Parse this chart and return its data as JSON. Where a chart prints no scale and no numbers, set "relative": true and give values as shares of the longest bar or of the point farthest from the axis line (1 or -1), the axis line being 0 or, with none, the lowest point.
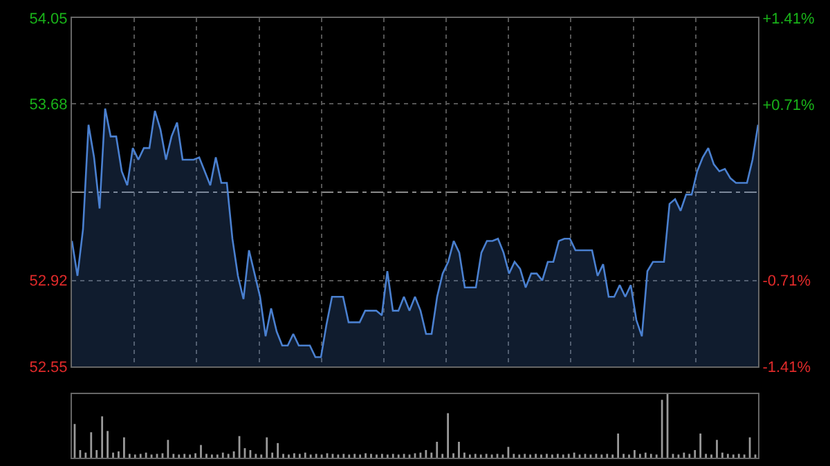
{
  "chart_data": [
    {
      "type": "area",
      "categories": [
        null,
        null,
        null,
        null,
        null,
        null,
        null,
        null,
        null,
        null,
        null,
        null,
        null,
        null,
        null,
        null,
        null,
        null,
        null,
        null,
        null,
        null,
        null,
        null,
        null,
        null,
        null,
        null,
        null,
        null,
        null,
        null,
        null,
        null,
        null,
        null,
        null,
        null,
        null,
        null,
        null,
        null,
        null,
        null,
        null,
        null,
        null,
        null,
        null,
        null,
        null,
        null,
        null,
        null,
        null,
        null,
        null,
        null,
        null,
        null,
        null,
        null,
        null,
        null,
        null,
        null,
        null,
        null,
        null,
        null,
        null,
        null,
        null,
        null,
        null,
        null,
        null,
        null,
        null,
        null,
        null,
        null,
        null,
        null,
        null,
        null,
        null,
        null,
        null,
        null,
        null,
        null,
        null,
        null,
        null,
        null,
        null,
        null,
        null,
        null,
        null,
        null,
        null,
        null,
        null,
        null,
        null,
        null,
        null,
        null,
        null,
        null,
        null,
        null,
        null,
        null,
        null,
        null,
        null,
        null,
        null,
        null,
        null,
        null,
        null
      ],
      "series": [
        {
          "color": "#4a80d0",
          "values": [
            53.09,
            52.94,
            53.14,
            53.59,
            53.45,
            53.23,
            53.66,
            53.54,
            53.54,
            53.39,
            53.33,
            53.49,
            53.44,
            53.49,
            53.49,
            53.65,
            53.57,
            53.44,
            53.54,
            53.6,
            53.44,
            53.44,
            53.44,
            53.45,
            53.39,
            53.33,
            53.45,
            53.34,
            53.34,
            53.1,
            52.94,
            52.84,
            53.05,
            52.95,
            52.85,
            52.68,
            52.8,
            52.7,
            52.64,
            52.64,
            52.69,
            52.64,
            52.64,
            52.64,
            52.59,
            52.59,
            52.73,
            52.85,
            52.85,
            52.85,
            52.74,
            52.74,
            52.74,
            52.79,
            52.79,
            52.79,
            52.77,
            52.96,
            52.79,
            52.79,
            52.85,
            52.79,
            52.85,
            52.79,
            52.69,
            52.69,
            52.85,
            52.95,
            53.0,
            53.09,
            53.04,
            52.89,
            52.89,
            52.89,
            53.04,
            53.09,
            53.09,
            53.1,
            53.04,
            52.95,
            53.0,
            52.97,
            52.89,
            52.95,
            52.95,
            52.92,
            53.0,
            53.0,
            53.09,
            53.1,
            53.1,
            53.05,
            53.05,
            53.05,
            53.05,
            52.94,
            52.99,
            52.85,
            52.85,
            52.9,
            52.85,
            52.9,
            52.75,
            52.68,
            52.96,
            53.0,
            53.0,
            53.0,
            53.25,
            53.27,
            53.22,
            53.29,
            53.29,
            53.39,
            53.45,
            53.49,
            53.42,
            53.39,
            53.4,
            53.36,
            53.34,
            53.34,
            53.34,
            53.44,
            53.59
          ]
        }
      ],
      "ylim": [
        52.55,
        54.05
      ],
      "yticks": [
        54.05,
        53.68,
        52.92,
        52.55
      ],
      "y2lim": [
        -1.41,
        1.41
      ],
      "y2ticks": [
        {
          "value": 1.41,
          "label": "+1.41%"
        },
        {
          "value": 0.71,
          "label": "+0.71%"
        },
        {
          "value": -0.71,
          "label": "-0.71%"
        },
        {
          "value": -1.41,
          "label": "-1.41%"
        }
      ],
      "ref_lines": [
        {
          "axis": "y",
          "value": 53.3
        }
      ],
      "grid": true,
      "tick_labels": "y"
    },
    {
      "type": "bar",
      "relative": true,
      "tick_labels": false,
      "categories": [
        null,
        null,
        null,
        null,
        null,
        null,
        null,
        null,
        null,
        null,
        null,
        null,
        null,
        null,
        null,
        null,
        null,
        null,
        null,
        null,
        null,
        null,
        null,
        null,
        null,
        null,
        null,
        null,
        null,
        null,
        null,
        null,
        null,
        null,
        null,
        null,
        null,
        null,
        null,
        null,
        null,
        null,
        null,
        null,
        null,
        null,
        null,
        null,
        null,
        null,
        null,
        null,
        null,
        null,
        null,
        null,
        null,
        null,
        null,
        null,
        null,
        null,
        null,
        null,
        null,
        null,
        null,
        null,
        null,
        null,
        null,
        null,
        null,
        null,
        null,
        null,
        null,
        null,
        null,
        null,
        null,
        null,
        null,
        null,
        null,
        null,
        null,
        null,
        null,
        null,
        null,
        null,
        null,
        null,
        null,
        null,
        null,
        null,
        null,
        null,
        null,
        null,
        null,
        null,
        null,
        null,
        null,
        null,
        null,
        null,
        null,
        null,
        null,
        null,
        null,
        null,
        null,
        null,
        null,
        null,
        null,
        null,
        null,
        null,
        null
      ],
      "series": [
        {
          "color": "#9a9a9a",
          "values": [
            0.53,
            0.12,
            0.08,
            0.4,
            0.12,
            0.65,
            0.42,
            0.08,
            0.1,
            0.32,
            0.06,
            0.05,
            0.06,
            0.08,
            0.05,
            0.06,
            0.07,
            0.28,
            0.06,
            0.05,
            0.06,
            0.05,
            0.07,
            0.2,
            0.06,
            0.05,
            0.05,
            0.08,
            0.06,
            0.1,
            0.34,
            0.15,
            0.12,
            0.06,
            0.05,
            0.32,
            0.08,
            0.23,
            0.06,
            0.05,
            0.07,
            0.06,
            0.08,
            0.05,
            0.06,
            0.05,
            0.07,
            0.06,
            0.05,
            0.06,
            0.05,
            0.06,
            0.05,
            0.07,
            0.06,
            0.05,
            0.06,
            0.05,
            0.06,
            0.05,
            0.06,
            0.05,
            0.07,
            0.08,
            0.12,
            0.08,
            0.25,
            0.06,
            0.7,
            0.07,
            0.25,
            0.08,
            0.05,
            0.06,
            0.05,
            0.06,
            0.05,
            0.06,
            0.05,
            0.17,
            0.06,
            0.05,
            0.06,
            0.05,
            0.06,
            0.05,
            0.06,
            0.05,
            0.06,
            0.05,
            0.06,
            0.08,
            0.05,
            0.06,
            0.05,
            0.06,
            0.05,
            0.06,
            0.05,
            0.38,
            0.06,
            0.05,
            0.12,
            0.06,
            0.08,
            0.06,
            0.05,
            0.91,
            1.0,
            0.06,
            0.05,
            0.08,
            0.06,
            0.12,
            0.38,
            0.06,
            0.05,
            0.28,
            0.08,
            0.06,
            0.05,
            0.06,
            0.05,
            0.32,
            0.05
          ]
        }
      ]
    }
  ]
}
